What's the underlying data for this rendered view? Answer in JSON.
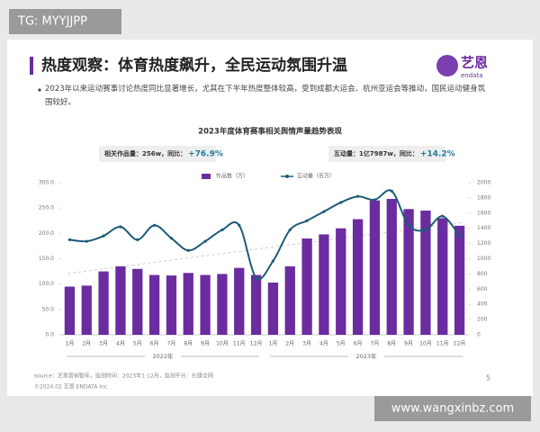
{
  "watermark_top": "TG: MYYJJPP",
  "slide_title": "热度观察：体育热度飙升，全民运动氛围升温",
  "logo": {
    "cn": "艺恩",
    "en": "endata"
  },
  "bullet": "2023年以来运动赛事讨论热度同比显著增长，尤其在下半年热度整体较高，受到成都大运会、杭州亚运会等推动，国民运动健身氛围较好。",
  "source": "source：艺恩营销智库，监测时间：2023年1-12月，监测平台：社媒全网",
  "copyright": "©2024.02 艺恩 ENDATA Inc.",
  "page_number": "5",
  "watermark_bottom": "www.wangxinbz.com",
  "chart_data": {
    "type": "bar",
    "title": "2023年度体育赛事相关舆情声量趋势表现",
    "highlights": [
      {
        "text": "相关作品量：256w，同比：",
        "change": "+76.9%"
      },
      {
        "text": "互动量：1亿7987w，同比：",
        "change": "+14.2%"
      }
    ],
    "categories": [
      "1月",
      "2月",
      "3月",
      "4月",
      "5月",
      "6月",
      "7月",
      "8月",
      "9月",
      "10月",
      "11月",
      "12月",
      "1月",
      "2月",
      "3月",
      "4月",
      "5月",
      "6月",
      "7月",
      "8月",
      "9月",
      "10月",
      "11月",
      "12月"
    ],
    "year_groups": [
      "2022年",
      "2023年"
    ],
    "series": [
      {
        "name": "作品数（万）",
        "color": "#6b2c9f",
        "type": "bar",
        "values": [
          95,
          97,
          125,
          135,
          130,
          118,
          117,
          122,
          118,
          120,
          132,
          118,
          103,
          135,
          190,
          198,
          210,
          228,
          265,
          268,
          248,
          245,
          230,
          215
        ]
      },
      {
        "name": "互动量（百万）",
        "color": "#1d5c78",
        "type": "line",
        "axis": "y2",
        "values": [
          1250,
          1230,
          1300,
          1420,
          1250,
          1440,
          1270,
          1110,
          1230,
          1380,
          1440,
          750,
          970,
          1380,
          1500,
          1620,
          1740,
          1820,
          1775,
          1890,
          1440,
          1380,
          1560,
          1300
        ]
      }
    ],
    "ylim": [
      0,
      300
    ],
    "yticks": [
      {
        "value": 0,
        "label": "0.0"
      },
      {
        "value": 50,
        "label": "50.0"
      },
      {
        "value": 100,
        "label": "100.0"
      },
      {
        "value": 150,
        "label": "150.0"
      },
      {
        "value": 200,
        "label": "200.0"
      },
      {
        "value": 250,
        "label": "250.0"
      },
      {
        "value": 300,
        "label": "300.0"
      }
    ],
    "y2lim": [
      0,
      2000
    ],
    "y2ticks": [
      0,
      200,
      400,
      600,
      800,
      1000,
      1200,
      1400,
      1600,
      1800,
      2000
    ]
  }
}
